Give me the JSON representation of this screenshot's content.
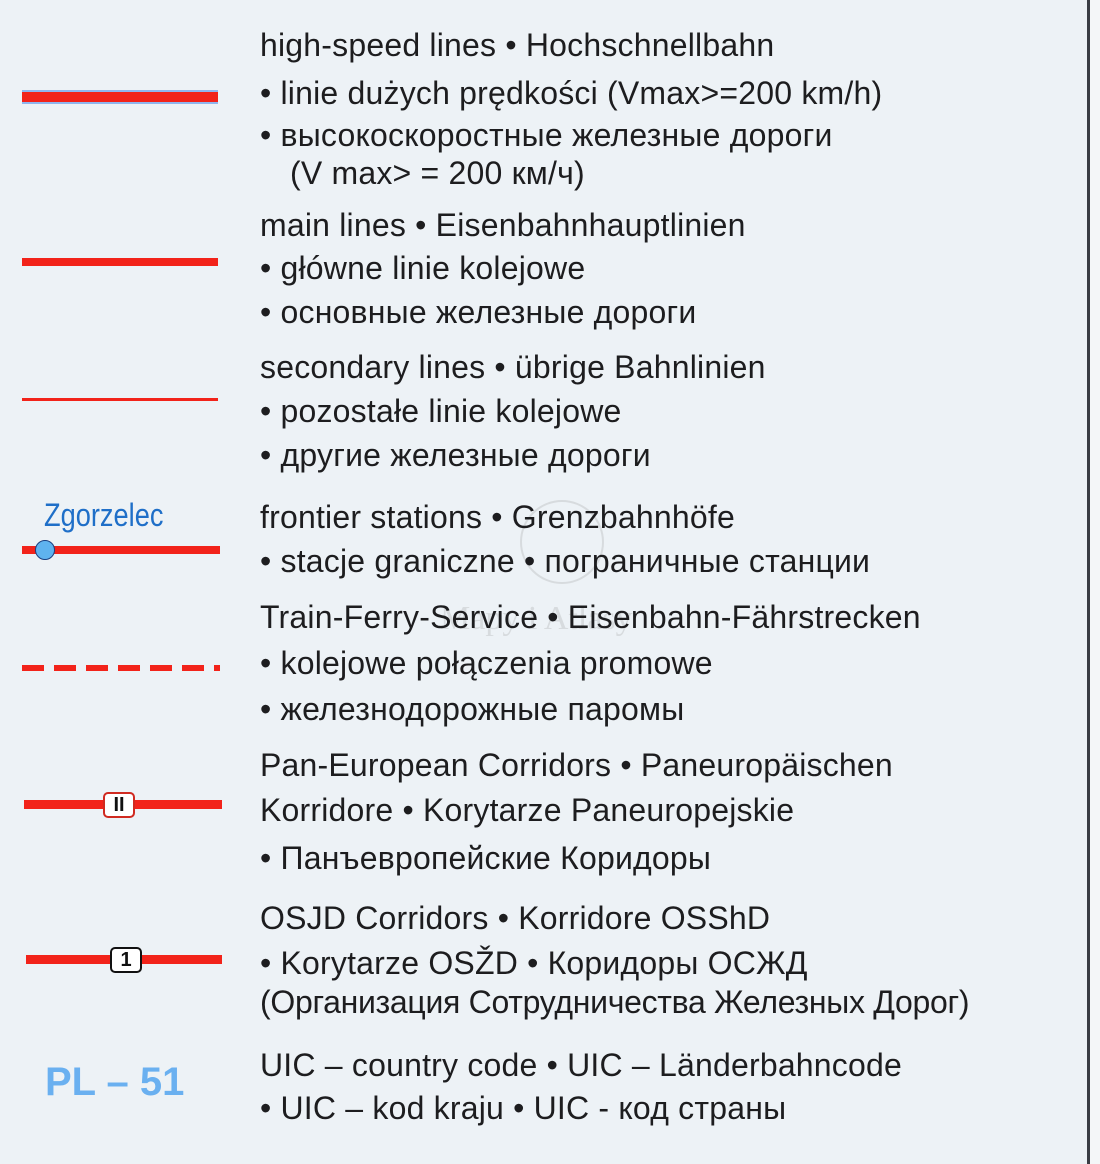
{
  "colors": {
    "rail": "#f2231a",
    "high_speed_outline": "#4a7fd8",
    "station_label": "#1f6fc8",
    "uic_code": "#6ab0f0",
    "background": "#edf2f6"
  },
  "watermark": "Mapy i Atlasy",
  "legend": [
    {
      "symbol": "high-speed-line",
      "lines": [
        "high-speed lines • Hochschnellbahn",
        "• linie dużych prędkości (Vmax>=200 km/h)",
        "• высокоскоростные железные дороги",
        "(V max> = 200 км/ч)"
      ]
    },
    {
      "symbol": "main-line",
      "lines": [
        "main lines • Eisenbahnhauptlinien",
        "• główne linie kolejowe",
        "• основные железные дороги"
      ]
    },
    {
      "symbol": "secondary-line",
      "lines": [
        "secondary lines  • übrige Bahnlinien",
        "• pozostałe linie kolejowe",
        "• другие железные дороги"
      ]
    },
    {
      "symbol": "frontier-station",
      "sample_label": "Zgorzelec",
      "lines": [
        "frontier stations • Grenzbahnhöfe",
        "• stacje graniczne • пограничные станции"
      ]
    },
    {
      "symbol": "train-ferry",
      "lines": [
        "Train-Ferry-Service • Eisenbahn-Fährstrecken",
        "• kolejowe połączenia promowe",
        "• железнодорожные паромы"
      ]
    },
    {
      "symbol": "pan-european-corridor",
      "marker": "II",
      "lines": [
        "Pan-European Corridors • Paneuropäischen",
        "Korridore • Korytarze Paneuropejskie",
        "• Панъевропейские Коридоры"
      ]
    },
    {
      "symbol": "osjd-corridor",
      "marker": "1",
      "lines": [
        "OSJD Corridors • Korridore OSShD",
        "• Korytarze OSŽD • Коридоры ОСЖД",
        "(Организация Сотрудничества Железных Дорог)"
      ]
    },
    {
      "symbol": "uic-code",
      "sample_label": "PL – 51",
      "lines": [
        "UIC – country code • UIC – Länderbahncode",
        "• UIC – kod kraju • UIC - код страны"
      ]
    }
  ]
}
